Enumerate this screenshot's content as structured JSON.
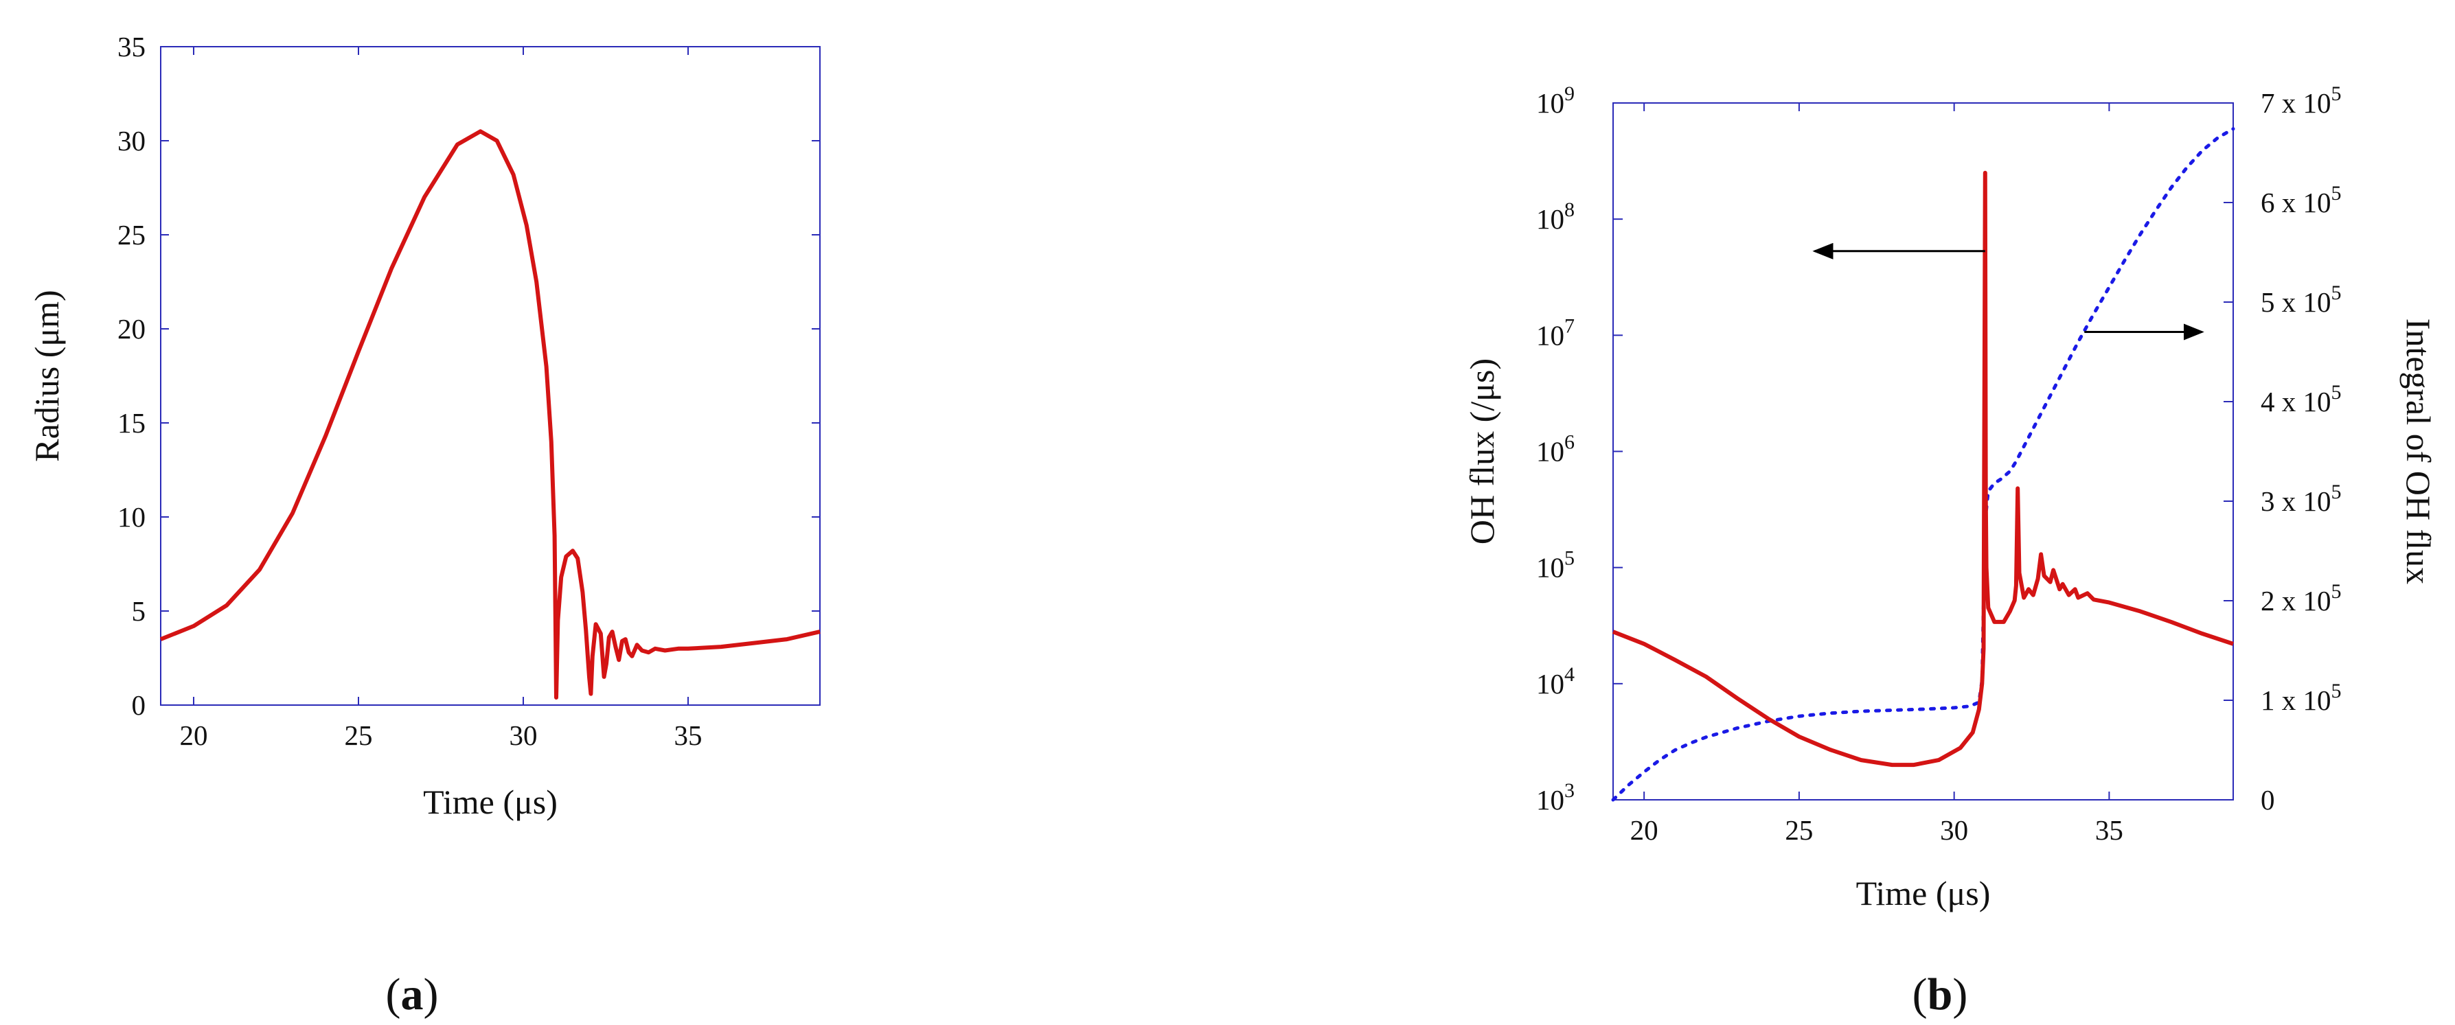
{
  "colors": {
    "axis": "#2b2bb8",
    "radius_series": "#d41414",
    "flux_series": "#d41414",
    "integral_series": "#1a1ae6",
    "arrow": "#000000"
  },
  "panel_labels": [
    {
      "open": "(",
      "letter": "a",
      "close": ")"
    },
    {
      "open": "(",
      "letter": "b",
      "close": ")"
    }
  ],
  "chart_data": [
    {
      "type": "line",
      "xlabel": "Time (μs)",
      "ylabel": "Radius (μm)",
      "xlim": [
        19,
        39
      ],
      "ylim": [
        0,
        35
      ],
      "xticks": [
        20,
        25,
        30,
        35
      ],
      "yticks": [
        0,
        5,
        10,
        15,
        20,
        25,
        30,
        35
      ],
      "grid": false,
      "series": [
        {
          "x": [
            19,
            20,
            21,
            22,
            23,
            24,
            25,
            26,
            27,
            28,
            28.7,
            29.2,
            29.7,
            30.1,
            30.4,
            30.7,
            30.85,
            30.95,
            31.0,
            31.05,
            31.15,
            31.3,
            31.5,
            31.65,
            31.8,
            31.9,
            32.0,
            32.05,
            32.1,
            32.2,
            32.35,
            32.45,
            32.52,
            32.6,
            32.7,
            32.8,
            32.9,
            33.0,
            33.1,
            33.2,
            33.3,
            33.45,
            33.6,
            33.8,
            34.0,
            34.3,
            34.7,
            35.0,
            36.0,
            37.0,
            38.0,
            39.0
          ],
          "y": [
            3.5,
            4.2,
            5.3,
            7.2,
            10.2,
            14.3,
            18.8,
            23.2,
            27.0,
            29.8,
            30.5,
            30.0,
            28.2,
            25.5,
            22.5,
            18.0,
            14.0,
            9.0,
            0.4,
            4.5,
            6.8,
            7.9,
            8.2,
            7.8,
            6.0,
            4.0,
            1.5,
            0.6,
            2.6,
            4.3,
            3.8,
            1.5,
            2.2,
            3.6,
            3.9,
            3.1,
            2.4,
            3.4,
            3.5,
            2.8,
            2.6,
            3.2,
            2.9,
            2.8,
            3.0,
            2.9,
            3.0,
            3.0,
            3.1,
            3.3,
            3.5,
            3.9
          ]
        }
      ]
    },
    {
      "type": "line",
      "xlabel": "Time (μs)",
      "ylabel": "OH flux (/μs)",
      "ylabel_right": "Integral of OH flux",
      "xlim": [
        19,
        39
      ],
      "ylim": [
        1000,
        1000000000
      ],
      "yscale": "log",
      "ylim_right": [
        0,
        700000
      ],
      "xticks": [
        20,
        25,
        30,
        35
      ],
      "yticks": [
        {
          "base": "10",
          "exp": "3"
        },
        {
          "base": "10",
          "exp": "4"
        },
        {
          "base": "10",
          "exp": "5"
        },
        {
          "base": "10",
          "exp": "6"
        },
        {
          "base": "10",
          "exp": "7"
        },
        {
          "base": "10",
          "exp": "8"
        },
        {
          "base": "10",
          "exp": "9"
        }
      ],
      "yticks_right": [
        {
          "label": "0",
          "exp": ""
        },
        {
          "label": "1 x 10",
          "exp": "5"
        },
        {
          "label": "2 x 10",
          "exp": "5"
        },
        {
          "label": "3 x 10",
          "exp": "5"
        },
        {
          "label": "4 x 10",
          "exp": "5"
        },
        {
          "label": "5 x 10",
          "exp": "5"
        },
        {
          "label": "6 x 10",
          "exp": "5"
        },
        {
          "label": "7 x 10",
          "exp": "5"
        }
      ],
      "grid": false,
      "annotations": [
        {
          "type": "arrow",
          "direction": "left",
          "from": [
            31.0,
            53000000
          ],
          "to": [
            25.5,
            53000000
          ]
        },
        {
          "type": "arrow",
          "direction": "right",
          "from": [
            34.2,
            470000
          ],
          "to": [
            38.0,
            470000
          ],
          "axis": "right"
        }
      ],
      "series": [
        {
          "axis": "left",
          "style": "solid",
          "x": [
            19,
            20,
            21,
            22,
            23,
            24,
            25,
            26,
            27,
            28,
            28.7,
            29.5,
            30.2,
            30.6,
            30.8,
            30.9,
            30.95,
            31.0,
            31.02,
            31.04,
            31.1,
            31.3,
            31.6,
            31.8,
            31.95,
            32.0,
            32.05,
            32.1,
            32.25,
            32.4,
            32.55,
            32.7,
            32.8,
            32.9,
            33.1,
            33.2,
            33.4,
            33.5,
            33.7,
            33.9,
            34.0,
            34.3,
            34.5,
            35.0,
            36.0,
            37.0,
            38.0,
            39.0
          ],
          "y": [
            28000,
            22000,
            16000,
            11500,
            7500,
            5000,
            3500,
            2700,
            2200,
            2000,
            2000,
            2200,
            2800,
            3800,
            6000,
            10000,
            20000,
            250000000,
            400000,
            100000,
            45000,
            34000,
            34000,
            42000,
            52000,
            70000,
            480000,
            90000,
            55000,
            65000,
            58000,
            80000,
            130000,
            85000,
            75000,
            95000,
            65000,
            72000,
            58000,
            65000,
            55000,
            60000,
            53000,
            50000,
            42000,
            34000,
            27000,
            22000
          ]
        },
        {
          "axis": "right",
          "style": "dotted",
          "x": [
            19,
            19.5,
            20,
            20.5,
            21,
            21.5,
            22,
            23,
            24,
            25,
            26,
            27,
            28,
            29,
            30,
            30.5,
            30.8,
            30.9,
            31.0,
            31.1,
            31.3,
            31.5,
            31.8,
            32,
            32.5,
            33,
            33.5,
            34,
            34.5,
            35,
            35.5,
            36,
            36.5,
            37,
            37.5,
            38,
            38.5,
            39
          ],
          "y": [
            0,
            15000,
            28000,
            40000,
            50000,
            57000,
            63000,
            72000,
            79000,
            84000,
            87000,
            89000,
            90000,
            91000,
            92500,
            94000,
            98000,
            120000,
            280000,
            310000,
            318000,
            322000,
            330000,
            340000,
            370000,
            400000,
            430000,
            460000,
            488000,
            515000,
            542000,
            568000,
            592000,
            615000,
            635000,
            652000,
            665000,
            674000
          ]
        }
      ]
    }
  ]
}
